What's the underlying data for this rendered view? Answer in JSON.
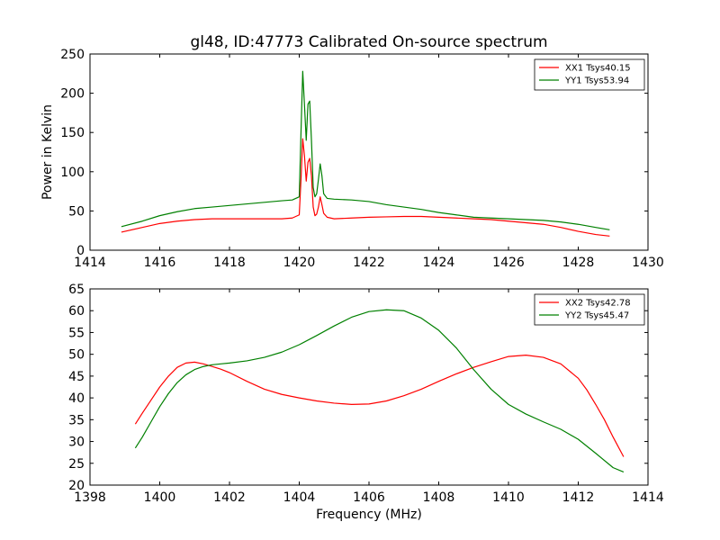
{
  "figure": {
    "title": "gl48, ID:47773 Calibrated On-source spectrum"
  },
  "chart_data": [
    {
      "type": "line",
      "title": "gl48, ID:47773 Calibrated On-source spectrum",
      "xlabel": "",
      "ylabel": "Power in Kelvin",
      "xlim": [
        1414,
        1430
      ],
      "ylim": [
        0,
        250
      ],
      "xticks": [
        1414,
        1416,
        1418,
        1420,
        1422,
        1424,
        1426,
        1428,
        1430
      ],
      "yticks": [
        0,
        50,
        100,
        150,
        200,
        250
      ],
      "grid": false,
      "legend": "top-right",
      "series": [
        {
          "name": "XX1 Tsys40.15",
          "color": "#ff0000",
          "x": [
            1414.9,
            1415.5,
            1416.0,
            1416.5,
            1417.0,
            1417.5,
            1418.0,
            1418.5,
            1419.0,
            1419.5,
            1419.8,
            1420.0,
            1420.05,
            1420.1,
            1420.15,
            1420.2,
            1420.25,
            1420.3,
            1420.35,
            1420.4,
            1420.45,
            1420.5,
            1420.55,
            1420.6,
            1420.65,
            1420.7,
            1420.8,
            1421.0,
            1421.5,
            1422.0,
            1422.5,
            1423.0,
            1423.5,
            1424.0,
            1424.5,
            1425.0,
            1425.5,
            1426.0,
            1426.5,
            1427.0,
            1427.5,
            1428.0,
            1428.5,
            1428.9
          ],
          "y": [
            23,
            29,
            34,
            37,
            39,
            40,
            40,
            40,
            40,
            40,
            41,
            45,
            90,
            142,
            120,
            88,
            112,
            117,
            95,
            55,
            44,
            46,
            55,
            68,
            58,
            47,
            42,
            40,
            41,
            42,
            42.5,
            43,
            43,
            42,
            41,
            40,
            39,
            37,
            35,
            33,
            29,
            24,
            20,
            18
          ]
        },
        {
          "name": "YY1 Tsys53.94",
          "color": "#008000",
          "x": [
            1414.9,
            1415.5,
            1416.0,
            1416.5,
            1417.0,
            1417.5,
            1418.0,
            1418.5,
            1419.0,
            1419.5,
            1419.8,
            1420.0,
            1420.05,
            1420.1,
            1420.15,
            1420.2,
            1420.25,
            1420.3,
            1420.35,
            1420.4,
            1420.45,
            1420.5,
            1420.55,
            1420.6,
            1420.65,
            1420.7,
            1420.8,
            1421.0,
            1421.5,
            1422.0,
            1422.5,
            1423.0,
            1423.5,
            1424.0,
            1424.5,
            1425.0,
            1425.5,
            1426.0,
            1426.5,
            1427.0,
            1427.5,
            1428.0,
            1428.5,
            1428.9
          ],
          "y": [
            30,
            37,
            44,
            49,
            53,
            55,
            57,
            59,
            61,
            63,
            64,
            68,
            150,
            228,
            185,
            140,
            186,
            190,
            140,
            80,
            68,
            72,
            90,
            110,
            95,
            72,
            66,
            65,
            64,
            62,
            58,
            55,
            52,
            48,
            45,
            42,
            41,
            40,
            39,
            38,
            36,
            33,
            29,
            26
          ]
        }
      ]
    },
    {
      "type": "line",
      "title": "",
      "xlabel": "Frequency (MHz)",
      "ylabel": "",
      "xlim": [
        1398,
        1414
      ],
      "ylim": [
        20,
        65
      ],
      "xticks": [
        1398,
        1400,
        1402,
        1404,
        1406,
        1408,
        1410,
        1412,
        1414
      ],
      "yticks": [
        20,
        25,
        30,
        35,
        40,
        45,
        50,
        55,
        60,
        65
      ],
      "grid": false,
      "legend": "top-right",
      "series": [
        {
          "name": "XX2 Tsys42.78",
          "color": "#ff0000",
          "x": [
            1399.3,
            1399.5,
            1399.75,
            1400.0,
            1400.25,
            1400.5,
            1400.75,
            1401.0,
            1401.25,
            1401.5,
            1401.75,
            1402.0,
            1402.5,
            1403.0,
            1403.5,
            1404.0,
            1404.5,
            1405.0,
            1405.5,
            1406.0,
            1406.5,
            1407.0,
            1407.5,
            1408.0,
            1408.5,
            1409.0,
            1409.5,
            1410.0,
            1410.5,
            1411.0,
            1411.5,
            1412.0,
            1412.25,
            1412.5,
            1412.75,
            1413.0,
            1413.3
          ],
          "y": [
            34,
            36.5,
            39.5,
            42.5,
            45,
            47,
            48,
            48.2,
            47.8,
            47.2,
            46.6,
            45.8,
            43.8,
            42,
            40.8,
            40,
            39.3,
            38.8,
            38.5,
            38.6,
            39.3,
            40.5,
            42,
            43.8,
            45.5,
            47,
            48.3,
            49.5,
            49.8,
            49.3,
            47.8,
            44.5,
            41.8,
            38.5,
            35,
            31,
            26.5
          ]
        },
        {
          "name": "YY2 Tsys45.47",
          "color": "#008000",
          "x": [
            1399.3,
            1399.5,
            1399.75,
            1400.0,
            1400.25,
            1400.5,
            1400.75,
            1401.0,
            1401.25,
            1401.5,
            1401.75,
            1402.0,
            1402.5,
            1403.0,
            1403.5,
            1404.0,
            1404.5,
            1405.0,
            1405.5,
            1406.0,
            1406.5,
            1407.0,
            1407.5,
            1408.0,
            1408.5,
            1409.0,
            1409.5,
            1410.0,
            1410.5,
            1411.0,
            1411.5,
            1412.0,
            1412.5,
            1413.0,
            1413.3
          ],
          "y": [
            28.5,
            31,
            34.5,
            38,
            41,
            43.5,
            45.3,
            46.5,
            47.2,
            47.6,
            47.8,
            48,
            48.5,
            49.3,
            50.5,
            52.2,
            54.3,
            56.5,
            58.5,
            59.8,
            60.2,
            60,
            58.3,
            55.5,
            51.5,
            46.5,
            42,
            38.5,
            36.3,
            34.5,
            32.8,
            30.5,
            27.3,
            24,
            23
          ]
        }
      ]
    }
  ]
}
